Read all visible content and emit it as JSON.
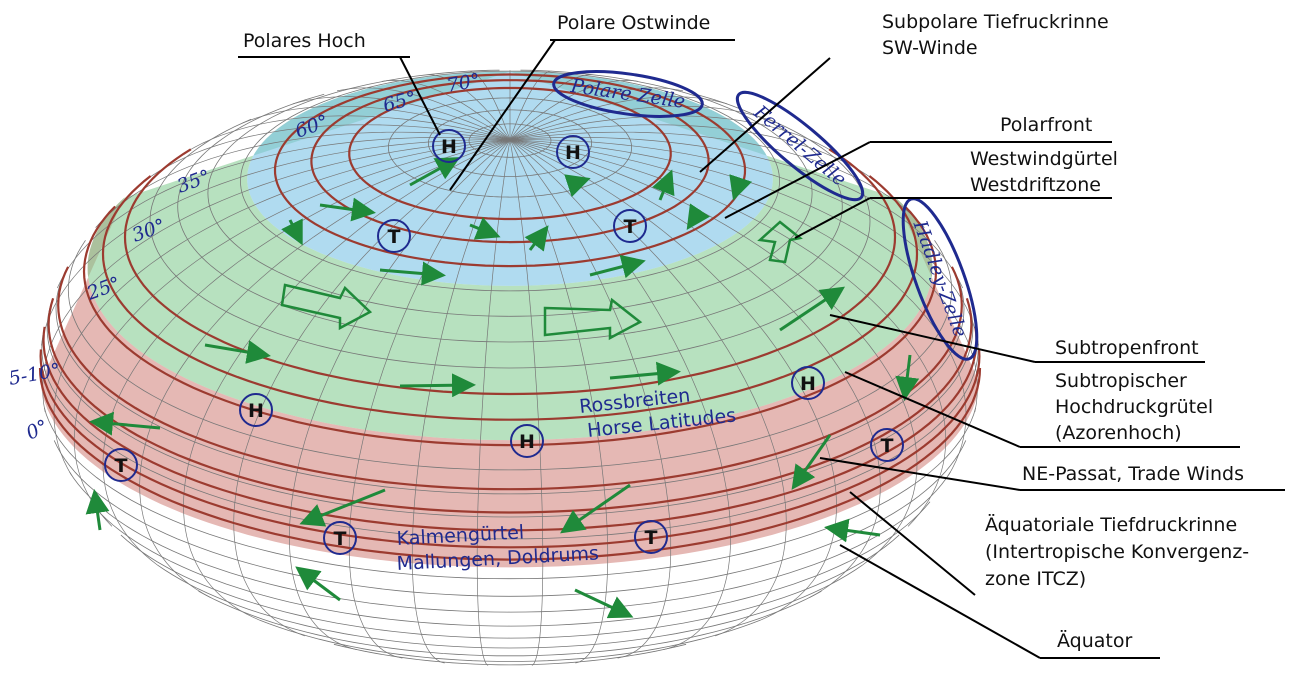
{
  "labels": [
    {
      "lines": [
        "Polares Hoch"
      ]
    },
    {
      "lines": [
        "Polare Ostwinde"
      ]
    },
    {
      "lines": [
        "Subpolare Tiefruckrinne",
        "SW-Winde"
      ]
    },
    {
      "lines": [
        "Polarfront"
      ]
    },
    {
      "lines": [
        "Westwindgürtel",
        "Westdriftzone"
      ]
    },
    {
      "lines": [
        "Subtropenfront"
      ]
    },
    {
      "lines": [
        "Subtropischer",
        "Hochdruckgrütel",
        "(Azorenhoch)"
      ]
    },
    {
      "lines": [
        "NE-Passat, Trade Winds"
      ]
    },
    {
      "lines": [
        "Äquatoriale Tiefdruckrinne",
        "(Intertropische Konvergenz-",
        "zone ITCZ)"
      ]
    },
    {
      "lines": [
        "Äquator"
      ]
    }
  ],
  "cells": [
    "Polare Zelle",
    "Ferrel-Zelle",
    "Hadley-Zelle"
  ],
  "latitudes": [
    "70°",
    "65°",
    "60°",
    "35°",
    "30°",
    "25°",
    "5-10°",
    "0°"
  ],
  "map_texts": [
    "Rossbreiten",
    "Horse Latitudes",
    "Kalmengürtel",
    "Mallungen, Doldrums"
  ],
  "pressure": [
    "H",
    "H",
    "T",
    "T",
    "H",
    "H",
    "H",
    "T",
    "T",
    "T",
    "T"
  ]
}
